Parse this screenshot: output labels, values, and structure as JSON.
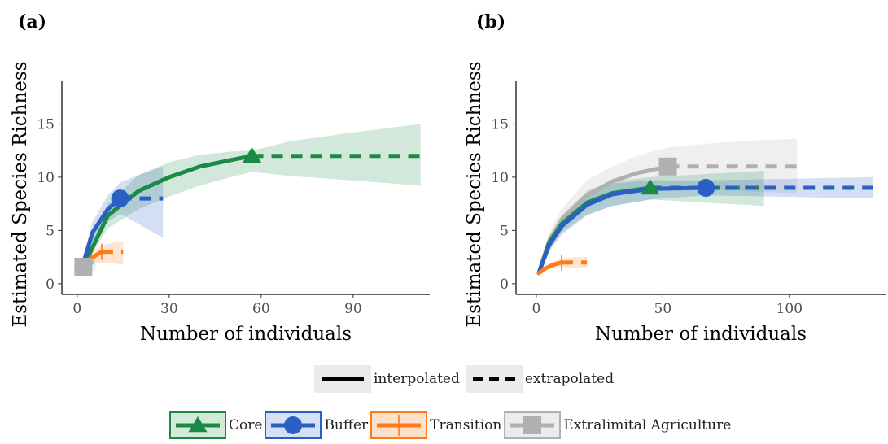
{
  "chart_data": [
    {
      "type": "line",
      "panel_label": "(a)",
      "xlabel": "Number of individuals",
      "ylabel": "Estimated Species Richness",
      "xlim": [
        -5,
        115
      ],
      "ylim": [
        -1,
        19
      ],
      "xticks": [
        0,
        30,
        60,
        90
      ],
      "yticks": [
        0,
        5,
        10,
        15
      ],
      "grid": false,
      "series": [
        {
          "name": "Core",
          "color": "#1a8a44",
          "marker": "triangle",
          "x": [
            1,
            10,
            20,
            30,
            40,
            50,
            57,
            70,
            90,
            112
          ],
          "y": [
            1,
            6.4,
            8.7,
            10.0,
            11.0,
            11.6,
            12.0,
            12.0,
            12.0,
            12.0
          ],
          "lower": [
            1,
            5.2,
            7.0,
            8.2,
            9.2,
            10.0,
            10.5,
            10.1,
            9.7,
            9.2
          ],
          "upper": [
            1.5,
            7.5,
            10.2,
            11.4,
            12.1,
            12.4,
            12.5,
            13.4,
            14.2,
            15.0
          ],
          "observed_index": 6
        },
        {
          "name": "Buffer",
          "color": "#2a5fc4",
          "marker": "circle",
          "x": [
            1,
            5,
            10,
            14,
            20,
            28
          ],
          "y": [
            1,
            4.8,
            7.0,
            8.0,
            8.0,
            8.0
          ],
          "lower": [
            1,
            3.9,
            5.8,
            6.6,
            5.6,
            4.3
          ],
          "upper": [
            1.4,
            5.8,
            8.3,
            9.5,
            10.2,
            11.0
          ],
          "observed_index": 3
        },
        {
          "name": "Transition",
          "color": "#ff7a1a",
          "marker": "vline",
          "x": [
            1,
            4,
            8,
            12,
            15
          ],
          "y": [
            1,
            2.3,
            3.0,
            3.0,
            3.0
          ],
          "lower": [
            1,
            1.8,
            2.0,
            1.9,
            1.8
          ],
          "upper": [
            1.3,
            2.9,
            3.6,
            3.9,
            4.0
          ],
          "observed_index": 2
        },
        {
          "name": "Extralimital Agriculture",
          "color": "#b0b0b0",
          "marker": "square",
          "x": [
            1,
            2,
            4,
            6
          ],
          "y": [
            1,
            1.6,
            2.0,
            2.0
          ],
          "lower": [
            1,
            1.3,
            1.3,
            1.2
          ],
          "upper": [
            1.2,
            2.0,
            2.7,
            2.8
          ],
          "observed_index": 1
        }
      ]
    },
    {
      "type": "line",
      "panel_label": "(b)",
      "xlabel": "Number of individuals",
      "ylabel": "Estimated Species Richness",
      "xlim": [
        -8,
        138
      ],
      "ylim": [
        -1,
        19
      ],
      "xticks": [
        0,
        50,
        100
      ],
      "yticks": [
        0,
        5,
        10,
        15
      ],
      "grid": false,
      "series": [
        {
          "name": "Extralimital Agriculture",
          "color": "#b0b0b0",
          "marker": "square",
          "x": [
            1,
            5,
            10,
            20,
            30,
            40,
            52,
            70,
            90,
            103
          ],
          "y": [
            1,
            4.0,
            6.0,
            8.3,
            9.6,
            10.4,
            11.0,
            11.0,
            11.0,
            11.0
          ],
          "lower": [
            1,
            3.4,
            5.2,
            7.2,
            8.1,
            8.7,
            9.0,
            8.8,
            8.6,
            8.5
          ],
          "upper": [
            1.3,
            4.8,
            7.0,
            9.7,
            11.0,
            12.0,
            12.8,
            13.2,
            13.5,
            13.6
          ],
          "observed_index": 6
        },
        {
          "name": "Core",
          "color": "#1a8a44",
          "marker": "triangle",
          "x": [
            1,
            5,
            10,
            20,
            30,
            45,
            60,
            75,
            90
          ],
          "y": [
            1,
            3.8,
            5.6,
            7.6,
            8.5,
            9.0,
            9.0,
            9.0,
            9.0
          ],
          "lower": [
            1,
            3.2,
            4.8,
            6.5,
            7.3,
            7.9,
            7.7,
            7.5,
            7.3
          ],
          "upper": [
            1.3,
            4.4,
            6.4,
            8.7,
            9.6,
            10.0,
            10.2,
            10.4,
            10.6
          ],
          "observed_index": 5
        },
        {
          "name": "Buffer",
          "color": "#2a5fc4",
          "marker": "circle",
          "x": [
            1,
            5,
            10,
            20,
            30,
            45,
            67,
            90,
            110,
            133
          ],
          "y": [
            1,
            3.6,
            5.4,
            7.4,
            8.4,
            8.9,
            9.0,
            9.0,
            9.0,
            9.0
          ],
          "lower": [
            1,
            3.0,
            4.6,
            6.4,
            7.3,
            7.9,
            8.3,
            8.2,
            8.1,
            8.0
          ],
          "upper": [
            1.3,
            4.2,
            6.2,
            8.4,
            9.4,
            9.7,
            9.7,
            9.8,
            9.9,
            10.0
          ],
          "observed_index": 6
        },
        {
          "name": "Transition",
          "color": "#ff7a1a",
          "marker": "vline",
          "x": [
            1,
            4,
            7,
            10,
            15,
            20
          ],
          "y": [
            1,
            1.5,
            1.8,
            2.0,
            2.0,
            2.0
          ],
          "lower": [
            1,
            1.3,
            1.5,
            1.6,
            1.5,
            1.5
          ],
          "upper": [
            1.2,
            1.7,
            2.1,
            2.4,
            2.5,
            2.5
          ],
          "observed_index": 3
        }
      ]
    }
  ],
  "legend": {
    "linetype": [
      {
        "label": "interpolated",
        "style": "solid"
      },
      {
        "label": "extrapolated",
        "style": "dashed"
      }
    ],
    "groups": [
      {
        "label": "Core",
        "color": "#1a8a44",
        "fill": "#d4ead9",
        "marker": "triangle"
      },
      {
        "label": "Buffer",
        "color": "#2a5fc4",
        "fill": "#d6e0f4",
        "marker": "circle"
      },
      {
        "label": "Transition",
        "color": "#ff7a1a",
        "fill": "#fde0ca",
        "marker": "vline"
      },
      {
        "label": "Extralimital Agriculture",
        "color": "#b0b0b0",
        "fill": "#ececec",
        "marker": "square"
      }
    ]
  }
}
